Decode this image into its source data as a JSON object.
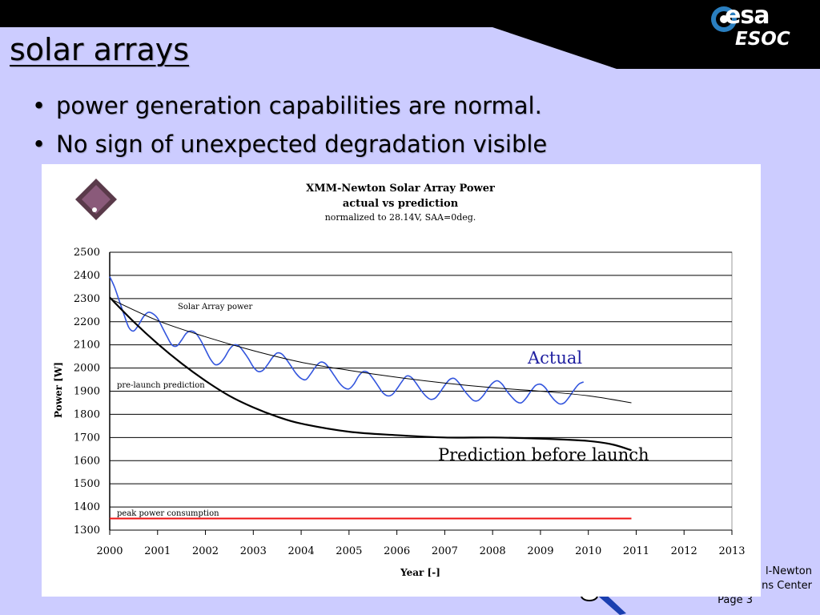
{
  "header": {
    "logo_text": "esa",
    "center_name": "ESOC"
  },
  "slide": {
    "title": "solar arrays",
    "bullets": [
      "power generation capabilities are normal.",
      "No sign of unexpected degradation visible"
    ]
  },
  "footer": {
    "line1": "l-Newton",
    "line2": "ns Center",
    "page": "Page 3"
  },
  "colors": {
    "background": "#ccccff",
    "actual_series": "#3355dd",
    "prediction_series": "#000000",
    "peak_consumption": "#ee1111",
    "annotation_text": "#1f1fa0"
  },
  "chart_data": {
    "type": "line",
    "title": "XMM-Newton Solar Array Power",
    "subtitle": "actual vs prediction",
    "note": "normalized to 28.14V, SAA=0deg.",
    "xlabel": "Year [-]",
    "ylabel": "Power [W]",
    "xlim": [
      2000,
      2013
    ],
    "ylim": [
      1300,
      2500
    ],
    "x_ticks": [
      "2000",
      "2001",
      "2002",
      "2003",
      "2004",
      "2005",
      "2006",
      "2007",
      "2008",
      "2009",
      "2010",
      "2011",
      "2012",
      "2013"
    ],
    "y_ticks": [
      "1300",
      "1400",
      "1500",
      "1600",
      "1700",
      "1800",
      "1900",
      "2000",
      "2100",
      "2200",
      "2300",
      "2400",
      "2500"
    ],
    "grid": "horizontal",
    "series": [
      {
        "name": "Solar Array power",
        "style": "actual",
        "x": [
          2000.0,
          2000.1,
          2000.2,
          2000.3,
          2000.4,
          2000.5,
          2000.6,
          2000.7,
          2000.8,
          2000.9,
          2001.0,
          2001.1,
          2001.2,
          2001.3,
          2001.4,
          2001.5,
          2001.6,
          2001.7,
          2001.8,
          2001.9,
          2002.0,
          2002.1,
          2002.2,
          2002.3,
          2002.4,
          2002.5,
          2002.6,
          2002.7,
          2002.8,
          2002.9,
          2003.0,
          2003.1,
          2003.2,
          2003.3,
          2003.4,
          2003.5,
          2003.6,
          2003.7,
          2003.8,
          2003.9,
          2004.0,
          2004.1,
          2004.2,
          2004.3,
          2004.4,
          2004.5,
          2004.6,
          2004.7,
          2004.8,
          2004.9,
          2005.0,
          2005.1,
          2005.2,
          2005.3,
          2005.4,
          2005.5,
          2005.6,
          2005.7,
          2005.8,
          2005.9,
          2006.0,
          2006.1,
          2006.2,
          2006.3,
          2006.4,
          2006.5,
          2006.6,
          2006.7,
          2006.8,
          2006.9,
          2007.0,
          2007.1,
          2007.2,
          2007.3,
          2007.4,
          2007.5,
          2007.6,
          2007.7,
          2007.8,
          2007.9,
          2008.0,
          2008.1,
          2008.2,
          2008.3,
          2008.4,
          2008.5,
          2008.6,
          2008.7,
          2008.8,
          2008.9,
          2009.0,
          2009.1,
          2009.2,
          2009.3,
          2009.4,
          2009.5,
          2009.6,
          2009.7,
          2009.8,
          2009.9
        ],
        "y": [
          2395,
          2350,
          2290,
          2230,
          2175,
          2160,
          2185,
          2220,
          2240,
          2235,
          2215,
          2175,
          2135,
          2100,
          2095,
          2120,
          2150,
          2160,
          2150,
          2120,
          2080,
          2040,
          2015,
          2020,
          2045,
          2080,
          2100,
          2095,
          2070,
          2040,
          2005,
          1985,
          1990,
          2015,
          2045,
          2065,
          2060,
          2035,
          2005,
          1975,
          1955,
          1950,
          1975,
          2005,
          2025,
          2020,
          1995,
          1965,
          1935,
          1915,
          1910,
          1930,
          1965,
          1985,
          1980,
          1955,
          1925,
          1895,
          1880,
          1885,
          1910,
          1940,
          1965,
          1960,
          1935,
          1905,
          1880,
          1865,
          1870,
          1895,
          1925,
          1950,
          1955,
          1935,
          1905,
          1880,
          1860,
          1860,
          1880,
          1910,
          1935,
          1945,
          1930,
          1900,
          1875,
          1855,
          1850,
          1870,
          1900,
          1925,
          1930,
          1915,
          1885,
          1860,
          1845,
          1850,
          1875,
          1905,
          1930,
          1940
        ]
      },
      {
        "name": "trend",
        "style": "trend",
        "x": [
          2000.0,
          2001.0,
          2002.0,
          2003.0,
          2004.0,
          2005.0,
          2006.0,
          2007.0,
          2008.0,
          2009.0,
          2010.0,
          2010.9
        ],
        "y": [
          2300,
          2205,
          2135,
          2075,
          2025,
          1990,
          1960,
          1935,
          1915,
          1900,
          1880,
          1850
        ]
      },
      {
        "name": "pre-launch prediction",
        "style": "prediction",
        "x": [
          2000.0,
          2000.5,
          2001.0,
          2001.5,
          2002.0,
          2002.5,
          2003.0,
          2003.5,
          2004.0,
          2005.0,
          2006.0,
          2007.0,
          2008.0,
          2009.0,
          2010.0,
          2010.5,
          2010.9
        ],
        "y": [
          2305,
          2200,
          2105,
          2020,
          1945,
          1880,
          1830,
          1790,
          1760,
          1725,
          1710,
          1700,
          1700,
          1695,
          1685,
          1670,
          1645
        ]
      },
      {
        "name": "peak power consumption",
        "style": "limit",
        "x": [
          2000.0,
          2010.9
        ],
        "y": [
          1350,
          1350
        ]
      }
    ],
    "annotations": [
      {
        "text": "Actual",
        "style": "big"
      },
      {
        "text": "Prediction before launch",
        "style": "big"
      },
      {
        "text": "Solar Array power",
        "style": "small"
      },
      {
        "text": "pre-launch prediction",
        "style": "small"
      },
      {
        "text": "peak power consumption",
        "style": "small"
      }
    ]
  }
}
